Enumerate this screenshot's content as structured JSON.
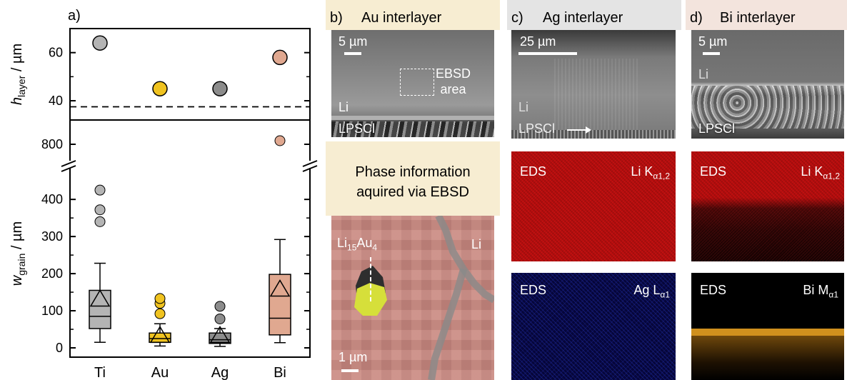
{
  "chart_data": {
    "type": "scatter+box",
    "panel_label": "a)",
    "categories": [
      "Ti",
      "Au",
      "Ag",
      "Bi"
    ],
    "colors": {
      "Ti": "#b4b4b4",
      "Au": "#f0c320",
      "Ag": "#8c8c8c",
      "Bi": "#e0a890"
    },
    "top": {
      "ylabel_main": "h",
      "ylabel_sub": "layer",
      "ylabel_unit": " / µm",
      "yticks": [
        40,
        60
      ],
      "ylim": [
        32,
        70
      ],
      "values": [
        64,
        45,
        45,
        58
      ],
      "reference_line": 37.5
    },
    "bottom": {
      "ylabel_main": "w",
      "ylabel_sub": "grain",
      "ylabel_unit": " / µm",
      "yticks": [
        0,
        100,
        200,
        300,
        400
      ],
      "ylim": [
        -25,
        460
      ],
      "break_tick": 800,
      "boxes": [
        {
          "name": "Ti",
          "q1": 52,
          "median": 85,
          "q3": 155,
          "whisker_low": 15,
          "whisker_high": 228,
          "mean": 128,
          "outliers": [
            340,
            372,
            425
          ]
        },
        {
          "name": "Au",
          "q1": 15,
          "median": 25,
          "q3": 40,
          "whisker_low": 5,
          "whisker_high": 65,
          "mean": 30,
          "outliers": [
            92,
            120,
            133
          ]
        },
        {
          "name": "Ag",
          "q1": 12,
          "median": 22,
          "q3": 40,
          "whisker_low": 4,
          "whisker_high": 52,
          "mean": 30,
          "outliers": [
            78,
            112
          ]
        },
        {
          "name": "Bi",
          "q1": 35,
          "median": 80,
          "q3": 198,
          "whisker_low": 14,
          "whisker_high": 292,
          "mean": 155,
          "outliers": []
        }
      ],
      "bi_high_outlier": 820
    }
  },
  "panels": {
    "b": {
      "label": "b)",
      "title": "Au interlayer",
      "scale": "5 µm",
      "ebsd_area": "EBSD\narea",
      "li": "Li",
      "lpscl": "LPSCl",
      "phase_line1": "Phase information",
      "phase_line2": "aquired via EBSD",
      "phase_label_main": "Li",
      "phase_label_sub1": "15",
      "phase_label_mid": "Au",
      "phase_label_sub2": "4",
      "map_li": "Li",
      "map_scale": "1 µm",
      "bg": "#f7edd2"
    },
    "c": {
      "label": "c)",
      "title": "Ag interlayer",
      "scale": "25 µm",
      "li": "Li",
      "lpscl": "LPSCl",
      "eds1": "EDS",
      "eds1_el": "Li K",
      "eds1_sub": "α1,2",
      "eds2": "EDS",
      "eds2_el": "Ag L",
      "eds2_sub": "α1",
      "bg": "#e4e4e4"
    },
    "d": {
      "label": "d)",
      "title": "Bi interlayer",
      "scale": "5 µm",
      "li": "Li",
      "lpscl": "LPSCl",
      "eds1": "EDS",
      "eds1_el": "Li K",
      "eds1_sub": "α1,2",
      "eds2": "EDS",
      "eds2_el": "Bi M",
      "eds2_sub": "α1",
      "bg": "#f3e4dd"
    }
  }
}
